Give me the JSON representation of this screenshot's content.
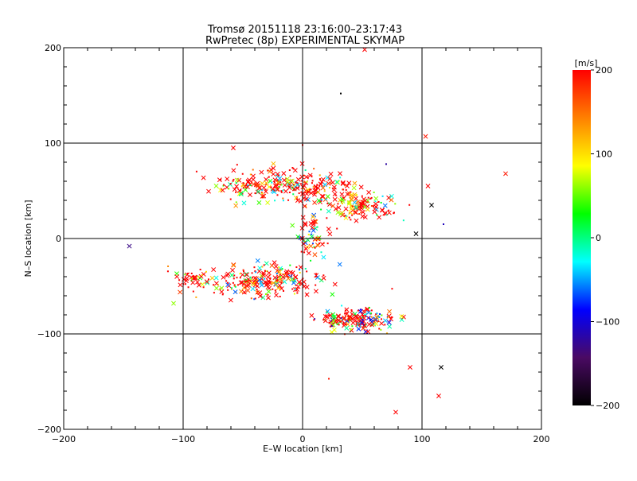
{
  "chart_data": {
    "type": "scatter",
    "title": "Tromsø 20151118 23:16:00–23:17:43",
    "subtitle": "RwPretec (8p) EXPERIMENTAL SKYMAP",
    "xlabel": "E–W location [km]",
    "ylabel": "N–S location [km]",
    "xlim": [
      -200,
      200
    ],
    "ylim": [
      -200,
      200
    ],
    "xticks": [
      -200,
      -100,
      0,
      100,
      200
    ],
    "yticks": [
      -200,
      -100,
      0,
      100,
      200
    ],
    "grid_lines_x": [
      -100,
      0,
      100
    ],
    "grid_lines_y": [
      -100,
      0,
      100
    ],
    "colorbar": {
      "label": "[m/s]",
      "range": [
        -200,
        200
      ],
      "ticks": [
        -200,
        -100,
        0,
        100,
        200
      ],
      "colormap": [
        "#000000",
        "#4a0a63",
        "#0000ff",
        "#00ffff",
        "#00ff00",
        "#ffff00",
        "#ff8000",
        "#ff0000"
      ]
    },
    "clusters": [
      {
        "cx": -15,
        "cy": 55,
        "sx": 40,
        "sy": 12,
        "n": 260,
        "vmean": 110,
        "vspread": 160
      },
      {
        "cx": 50,
        "cy": 35,
        "sx": 25,
        "sy": 10,
        "n": 130,
        "vmean": 100,
        "vspread": 160
      },
      {
        "cx": -30,
        "cy": -45,
        "sx": 35,
        "sy": 12,
        "n": 240,
        "vmean": 100,
        "vspread": 170
      },
      {
        "cx": -95,
        "cy": -42,
        "sx": 12,
        "sy": 8,
        "n": 40,
        "vmean": 140,
        "vspread": 120
      },
      {
        "cx": 45,
        "cy": -85,
        "sx": 22,
        "sy": 8,
        "n": 180,
        "vmean": 70,
        "vspread": 190
      },
      {
        "cx": 10,
        "cy": 0,
        "sx": 10,
        "sy": 18,
        "n": 60,
        "vmean": 60,
        "vspread": 180
      }
    ],
    "outliers": [
      {
        "x": 52,
        "y": 198,
        "v": 200
      },
      {
        "x": 32,
        "y": 152,
        "v": -200
      },
      {
        "x": 103,
        "y": 107,
        "v": 190
      },
      {
        "x": 170,
        "y": 68,
        "v": 190
      },
      {
        "x": 118,
        "y": 15,
        "v": -110
      },
      {
        "x": -145,
        "y": -8,
        "v": -130
      },
      {
        "x": -108,
        "y": -68,
        "v": 60
      },
      {
        "x": 116,
        "y": -135,
        "v": -200
      },
      {
        "x": 114,
        "y": -165,
        "v": 200
      },
      {
        "x": 78,
        "y": -182,
        "v": 200
      },
      {
        "x": 22,
        "y": -147,
        "v": 190
      },
      {
        "x": 90,
        "y": -135,
        "v": 200
      },
      {
        "x": -58,
        "y": 95,
        "v": 200
      },
      {
        "x": 0,
        "y": 98,
        "v": 200
      },
      {
        "x": 70,
        "y": 78,
        "v": -120
      },
      {
        "x": 105,
        "y": 55,
        "v": 200
      },
      {
        "x": 108,
        "y": 35,
        "v": -200
      },
      {
        "x": 95,
        "y": 5,
        "v": -200
      }
    ]
  }
}
